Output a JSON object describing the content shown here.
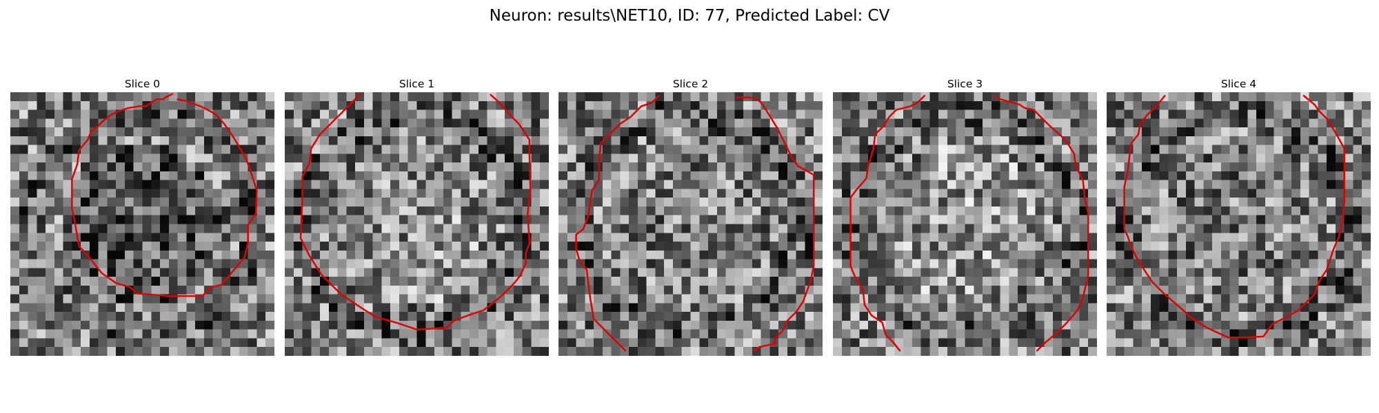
{
  "title": "Neuron: results\\NET10, ID: 77, Predicted Label: CV",
  "colors": {
    "contour": "#e00000",
    "background": "#ffffff"
  },
  "slices": [
    {
      "title": "Slice 0",
      "seed": 11,
      "center_brightness": 0.0
    },
    {
      "title": "Slice 1",
      "seed": 23,
      "center_brightness": 0.6
    },
    {
      "title": "Slice 2",
      "seed": 37,
      "center_brightness": 0.45
    },
    {
      "title": "Slice 3",
      "seed": 53,
      "center_brightness": 0.65
    },
    {
      "title": "Slice 4",
      "seed": 71,
      "center_brightness": 0.4
    }
  ]
}
